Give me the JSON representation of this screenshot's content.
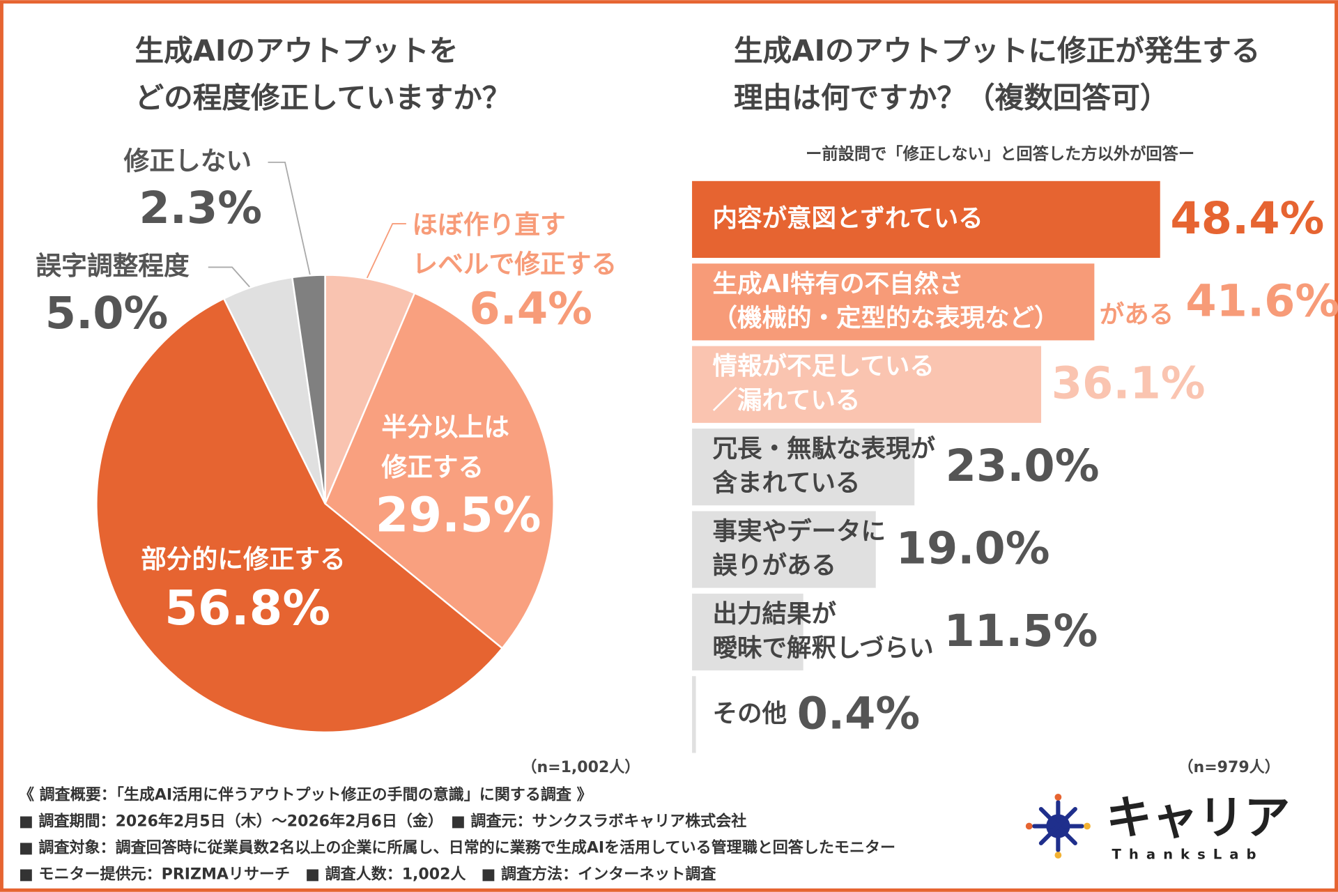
{
  "chart_data": [
    {
      "type": "pie",
      "title": [
        "生成AIのアウトプットを",
        "どの程度修正していますか？"
      ],
      "categories": [
        [
          "ほぼ作り直す",
          "レベルで修正する"
        ],
        [
          "半分以上は",
          "修正する"
        ],
        [
          "部分的に修正する"
        ],
        [
          "誤字調整程度"
        ],
        [
          "修正しない"
        ]
      ],
      "values": [
        6.4,
        29.5,
        56.8,
        5.0,
        2.3
      ],
      "value_labels": [
        "6.4%",
        "29.5%",
        "56.8%",
        "5.0%",
        "2.3%"
      ],
      "colors": [
        "#f9c3b0",
        "#f9a07f",
        "#e66431",
        "#e0e0e0",
        "#808080"
      ],
      "note": "（n=1,002人）"
    },
    {
      "type": "hbar",
      "title": [
        "生成AIのアウトプットに修正が発生する",
        "理由は何ですか？（複数回答可）"
      ],
      "subtitle": "ー前設問で「修正しない」と回答した方以外が回答ー",
      "categories": [
        [
          "内容が意図とずれている"
        ],
        [
          "生成AI特有の不自然さ",
          "（機械的・定型的な表現など）",
          "がある"
        ],
        [
          "情報が不足している",
          "／漏れている"
        ],
        [
          "冗長・無駄な表現が",
          "含まれている"
        ],
        [
          "事実やデータに",
          "誤りがある"
        ],
        [
          "出力結果が",
          "曖昧で解釈しづらい"
        ],
        [
          "その他"
        ]
      ],
      "values": [
        48.4,
        41.6,
        36.1,
        23.0,
        19.0,
        11.5,
        0.4
      ],
      "value_labels": [
        "48.4%",
        "41.6%",
        "36.1%",
        "23.0%",
        "19.0%",
        "11.5%",
        "0.4%"
      ],
      "colors": [
        "#e66431",
        "#f79b78",
        "#fac4b0",
        "#e0e0e0",
        "#e0e0e0",
        "#e0e0e0",
        "#e0e0e0"
      ],
      "label_colors": [
        "#e66431",
        "#f79b78",
        "#fac4b0",
        "#555555",
        "#555555",
        "#555555",
        "#555555"
      ],
      "xlim": [
        0,
        60
      ],
      "note": "（n=979人）"
    }
  ],
  "footer": {
    "lines": [
      "《 調査概要：「生成AI活用に伴うアウトプット修正の手間の意識」に関する調査 》",
      "■ 調査期間：2026年2月5日（木）～2026年2月6日（金）　■ 調査元：サンクスラボキャリア株式会社",
      "■ 調査対象：調査回答時に従業員数2名以上の企業に所属し、日常的に業務で生成AIを活用している管理職と回答したモニター",
      "■ モニター提供元：PRIZMAリサーチ　■ 調査人数：1,002人　■ 調査方法：インターネット調査"
    ],
    "logo": "キャリア",
    "logo_sub": "ThanksLab"
  }
}
